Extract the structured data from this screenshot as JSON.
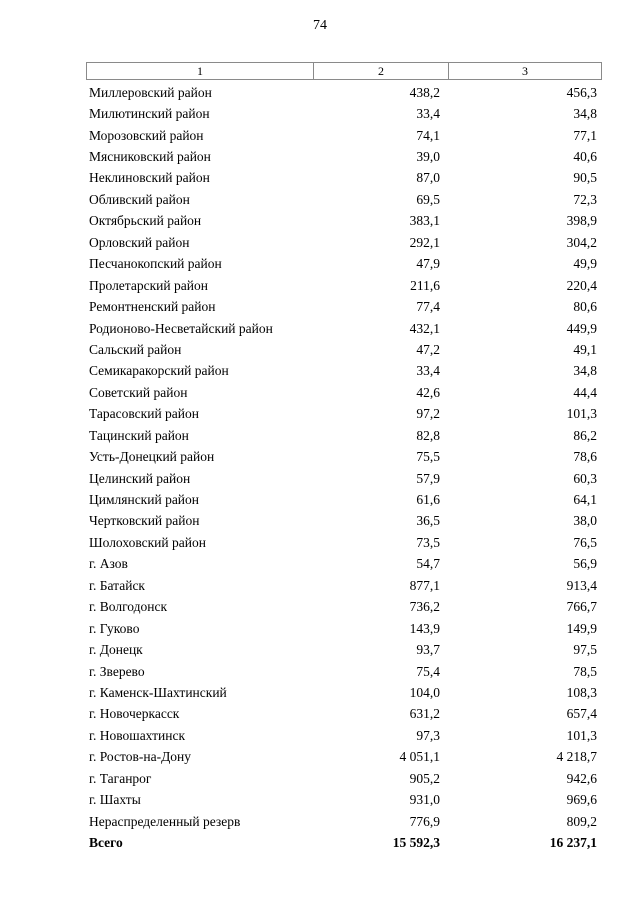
{
  "page": {
    "number": "74"
  },
  "table": {
    "headers": [
      "1",
      "2",
      "3"
    ],
    "rows": [
      {
        "name": "Миллеровский район",
        "v2": "438,2",
        "v3": "456,3"
      },
      {
        "name": "Милютинский район",
        "v2": "33,4",
        "v3": "34,8"
      },
      {
        "name": "Морозовский район",
        "v2": "74,1",
        "v3": "77,1"
      },
      {
        "name": "Мясниковский район",
        "v2": "39,0",
        "v3": "40,6"
      },
      {
        "name": "Неклиновский район",
        "v2": "87,0",
        "v3": "90,5"
      },
      {
        "name": "Обливский район",
        "v2": "69,5",
        "v3": "72,3"
      },
      {
        "name": "Октябрьский район",
        "v2": "383,1",
        "v3": "398,9"
      },
      {
        "name": "Орловский район",
        "v2": "292,1",
        "v3": "304,2"
      },
      {
        "name": "Песчанокопский район",
        "v2": "47,9",
        "v3": "49,9"
      },
      {
        "name": "Пролетарский район",
        "v2": "211,6",
        "v3": "220,4"
      },
      {
        "name": "Ремонтненский район",
        "v2": "77,4",
        "v3": "80,6"
      },
      {
        "name": "Родионово-Несветайский район",
        "v2": "432,1",
        "v3": "449,9"
      },
      {
        "name": "Сальский район",
        "v2": "47,2",
        "v3": "49,1"
      },
      {
        "name": "Семикаракорский район",
        "v2": "33,4",
        "v3": "34,8"
      },
      {
        "name": "Советский район",
        "v2": "42,6",
        "v3": "44,4"
      },
      {
        "name": "Тарасовский район",
        "v2": "97,2",
        "v3": "101,3"
      },
      {
        "name": "Тацинский район",
        "v2": "82,8",
        "v3": "86,2"
      },
      {
        "name": "Усть-Донецкий район",
        "v2": "75,5",
        "v3": "78,6"
      },
      {
        "name": "Целинский район",
        "v2": "57,9",
        "v3": "60,3"
      },
      {
        "name": "Цимлянский район",
        "v2": "61,6",
        "v3": "64,1"
      },
      {
        "name": "Чертковский район",
        "v2": "36,5",
        "v3": "38,0"
      },
      {
        "name": "Шолоховский район",
        "v2": "73,5",
        "v3": "76,5"
      },
      {
        "name": "г. Азов",
        "v2": "54,7",
        "v3": "56,9"
      },
      {
        "name": "г. Батайск",
        "v2": "877,1",
        "v3": "913,4"
      },
      {
        "name": "г. Волгодонск",
        "v2": "736,2",
        "v3": "766,7"
      },
      {
        "name": "г. Гуково",
        "v2": "143,9",
        "v3": "149,9"
      },
      {
        "name": "г. Донецк",
        "v2": "93,7",
        "v3": "97,5"
      },
      {
        "name": "г. Зверево",
        "v2": "75,4",
        "v3": "78,5"
      },
      {
        "name": "г. Каменск-Шахтинский",
        "v2": "104,0",
        "v3": "108,3"
      },
      {
        "name": "г. Новочеркасск",
        "v2": "631,2",
        "v3": "657,4"
      },
      {
        "name": "г. Новошахтинск",
        "v2": "97,3",
        "v3": "101,3"
      },
      {
        "name": "г. Ростов-на-Дону",
        "v2": "4 051,1",
        "v3": "4 218,7"
      },
      {
        "name": "г. Таганрог",
        "v2": "905,2",
        "v3": "942,6"
      },
      {
        "name": "г. Шахты",
        "v2": "931,0",
        "v3": "969,6"
      },
      {
        "name": "Нераспределенный резерв",
        "v2": "776,9",
        "v3": "809,2"
      }
    ],
    "total": {
      "name": "Всего",
      "v2": "15 592,3",
      "v3": "16 237,1"
    }
  }
}
